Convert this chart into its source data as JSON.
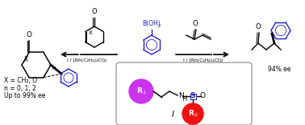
{
  "bg_color": "#ffffff",
  "blue_color": "#2222cc",
  "purple_color": "#cc33dd",
  "red_color": "#dd1111",
  "box_color": "#888888",
  "label_I_left": "I / [Rh(C₂H₄)₂Cl]₂",
  "label_I_right": "I / [Rh(C₂H₄)₂Cl]₂",
  "ee_text": "94% ee",
  "bottom_text_1": "X = CH₂, O",
  "bottom_text_2": "n = 0, 1, 2",
  "bottom_text_3": "Up to 99% ee",
  "label_I": "I",
  "figsize": [
    3.78,
    1.56
  ],
  "dpi": 100
}
